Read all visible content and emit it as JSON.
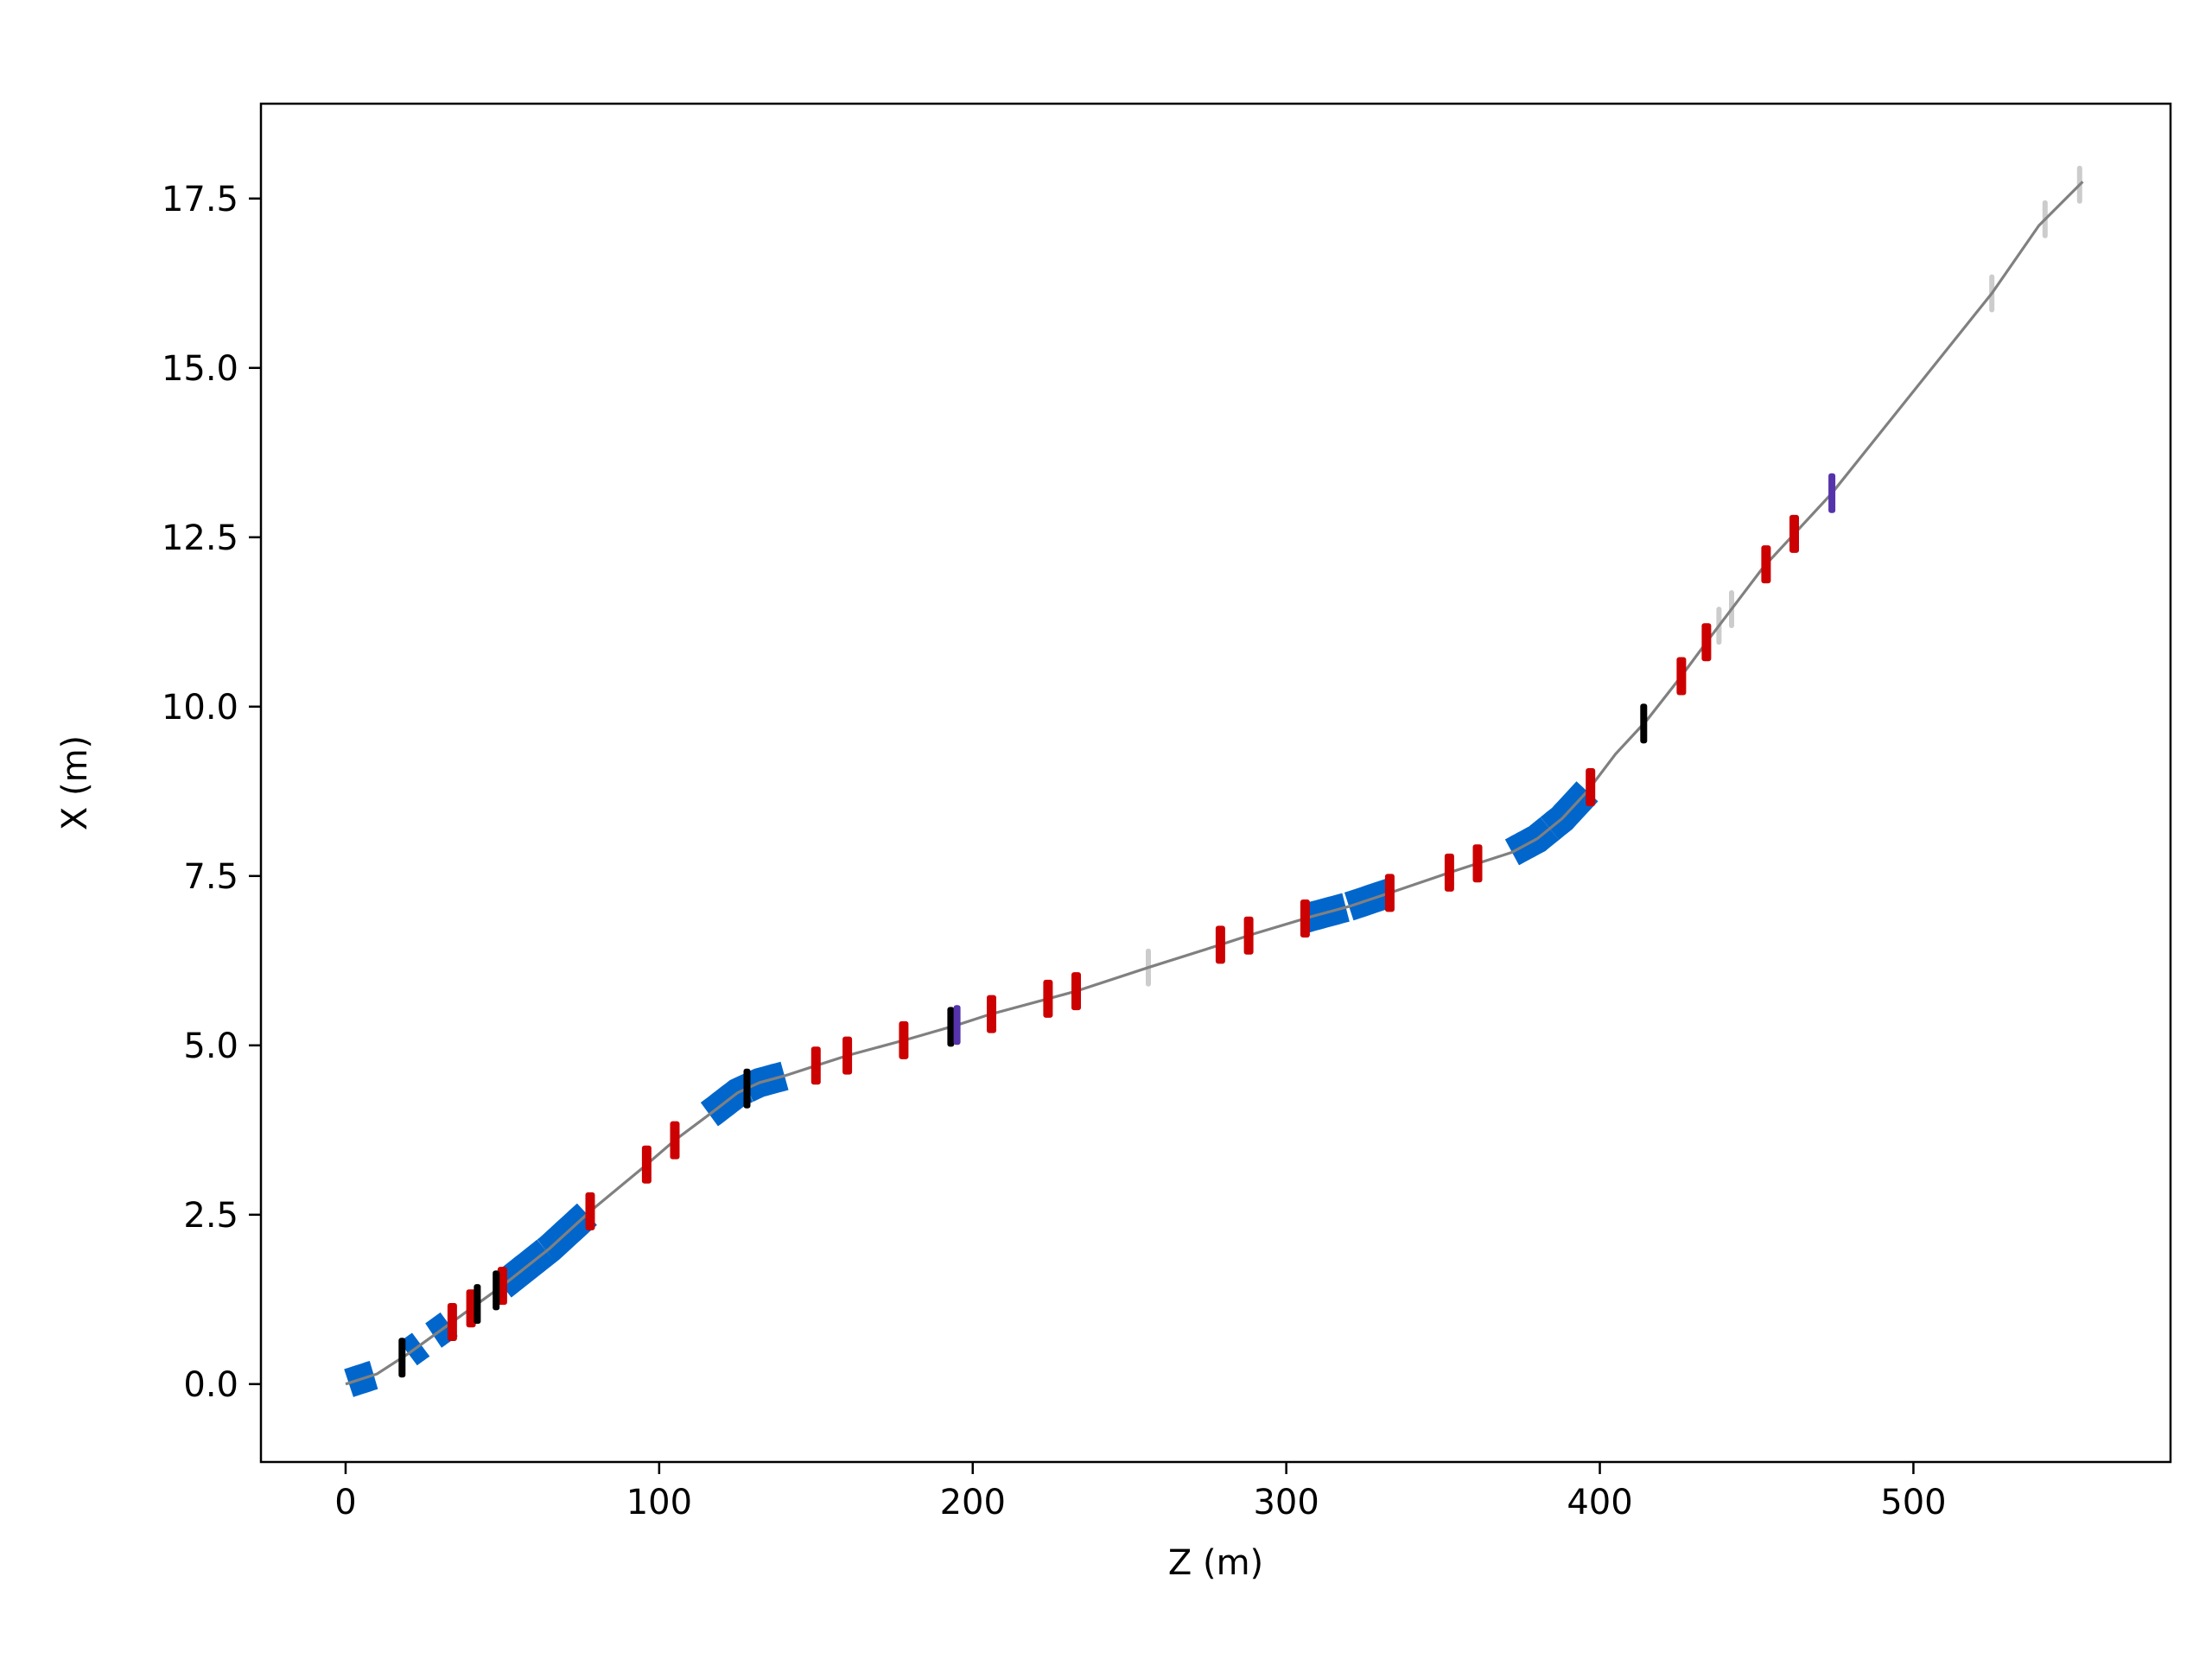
{
  "chart_data": {
    "type": "line",
    "title": "",
    "xlabel": "Z (m)",
    "ylabel": "X (m)",
    "xlim": [
      -27,
      582
    ],
    "ylim": [
      -1.15,
      18.9
    ],
    "xticks": [
      0,
      100,
      200,
      300,
      400,
      500
    ],
    "xtick_labels": [
      "0",
      "100",
      "200",
      "300",
      "400",
      "500"
    ],
    "yticks": [
      0.0,
      2.5,
      5.0,
      7.5,
      10.0,
      12.5,
      15.0,
      17.5
    ],
    "ytick_labels": [
      "0.0",
      "2.5",
      "5.0",
      "7.5",
      "10.0",
      "12.5",
      "15.0",
      "17.5"
    ],
    "grid": false,
    "legend": "none",
    "colors": {
      "beamline": "#808080",
      "dipole": "#0066cc",
      "quadrupole": "#cc0000",
      "marker": "#000000",
      "kicker": "#5533aa",
      "inactive": "#cccccc"
    },
    "series": [
      {
        "kind": "beamline",
        "x": [
          0,
          10,
          20,
          35,
          50,
          65,
          78,
          95,
          105,
          118,
          125,
          132,
          140,
          150,
          160,
          180,
          195,
          205,
          225,
          233,
          256,
          280,
          290,
          308,
          320,
          333,
          352,
          362,
          372,
          380,
          388,
          396,
          405,
          415,
          426,
          434,
          452,
          461,
          474,
          525,
          540,
          554
        ],
        "y": [
          0.0,
          0.15,
          0.45,
          0.95,
          1.45,
          2.0,
          2.55,
          3.2,
          3.6,
          4.05,
          4.3,
          4.45,
          4.55,
          4.7,
          4.85,
          5.1,
          5.3,
          5.45,
          5.7,
          5.8,
          6.15,
          6.5,
          6.65,
          6.9,
          7.05,
          7.25,
          7.55,
          7.7,
          7.85,
          8.05,
          8.35,
          8.75,
          9.3,
          9.8,
          10.45,
          10.95,
          12.05,
          12.5,
          13.15,
          16.1,
          17.1,
          17.75
        ]
      }
    ],
    "elements": [
      {
        "kind": "dipole",
        "z0": 1,
        "z1": 9
      },
      {
        "kind": "dipole",
        "z0": 20,
        "z1": 24
      },
      {
        "kind": "dipole",
        "z0": 28,
        "z1": 33
      },
      {
        "kind": "dipole",
        "z0": 50,
        "z1": 64
      },
      {
        "kind": "dipole",
        "z0": 64,
        "z1": 77
      },
      {
        "kind": "dipole",
        "z0": 116,
        "z1": 128
      },
      {
        "kind": "dipole",
        "z0": 128,
        "z1": 140
      },
      {
        "kind": "dipole",
        "z0": 306,
        "z1": 319
      },
      {
        "kind": "dipole",
        "z0": 320,
        "z1": 333
      },
      {
        "kind": "dipole",
        "z0": 372,
        "z1": 384
      },
      {
        "kind": "dipole",
        "z0": 384,
        "z1": 396
      },
      {
        "kind": "quadrupole",
        "z": 34
      },
      {
        "kind": "quadrupole",
        "z": 40
      },
      {
        "kind": "quadrupole",
        "z": 50
      },
      {
        "kind": "quadrupole",
        "z": 78
      },
      {
        "kind": "quadrupole",
        "z": 96
      },
      {
        "kind": "quadrupole",
        "z": 105
      },
      {
        "kind": "quadrupole",
        "z": 150
      },
      {
        "kind": "quadrupole",
        "z": 160
      },
      {
        "kind": "quadrupole",
        "z": 178
      },
      {
        "kind": "quadrupole",
        "z": 206
      },
      {
        "kind": "quadrupole",
        "z": 224
      },
      {
        "kind": "quadrupole",
        "z": 233
      },
      {
        "kind": "quadrupole",
        "z": 279
      },
      {
        "kind": "quadrupole",
        "z": 288
      },
      {
        "kind": "quadrupole",
        "z": 306
      },
      {
        "kind": "quadrupole",
        "z": 333
      },
      {
        "kind": "quadrupole",
        "z": 352
      },
      {
        "kind": "quadrupole",
        "z": 361
      },
      {
        "kind": "quadrupole",
        "z": 397
      },
      {
        "kind": "quadrupole",
        "z": 426
      },
      {
        "kind": "quadrupole",
        "z": 434
      },
      {
        "kind": "quadrupole",
        "z": 453
      },
      {
        "kind": "quadrupole",
        "z": 462
      },
      {
        "kind": "marker",
        "z": 18
      },
      {
        "kind": "marker",
        "z": 42
      },
      {
        "kind": "marker",
        "z": 48
      },
      {
        "kind": "marker",
        "z": 128
      },
      {
        "kind": "marker",
        "z": 193
      },
      {
        "kind": "marker",
        "z": 414
      },
      {
        "kind": "kicker",
        "z": 195
      },
      {
        "kind": "kicker",
        "z": 474
      },
      {
        "kind": "inactive",
        "z": 256
      },
      {
        "kind": "inactive",
        "z": 438
      },
      {
        "kind": "inactive",
        "z": 442
      },
      {
        "kind": "inactive",
        "z": 525
      },
      {
        "kind": "inactive",
        "z": 542
      },
      {
        "kind": "inactive",
        "z": 553
      }
    ]
  }
}
